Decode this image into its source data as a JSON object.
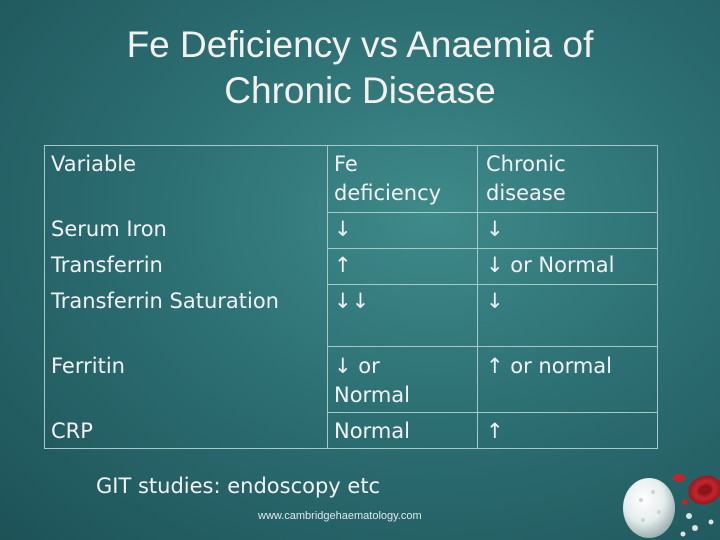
{
  "slide": {
    "title_line1": "Fe Deficiency vs Anaemia of",
    "title_line2": "Chronic Disease"
  },
  "table": {
    "headers": {
      "variable": "Variable",
      "fe_line1": "Fe",
      "fe_line2": "deficiency",
      "chronic_line1": "Chronic",
      "chronic_line2": "disease"
    },
    "rows": [
      {
        "variable": "Serum Iron",
        "fe": "↓",
        "chronic": "↓"
      },
      {
        "variable": "Transferrin",
        "fe": "↑",
        "chronic": "↓ or Normal"
      },
      {
        "variable": "Transferrin Saturation",
        "fe": "↓↓",
        "chronic": "↓"
      },
      {
        "variable": "Ferritin",
        "fe_line1": "↓ or",
        "fe_line2": "Normal",
        "chronic": "↑ or normal"
      },
      {
        "variable": "CRP",
        "fe": "Normal",
        "chronic": "↑"
      }
    ]
  },
  "footer": {
    "note": "GIT studies: endoscopy etc",
    "url": "www.cambridgehaematology.com"
  },
  "colors": {
    "background": "#2c6f73",
    "text": "#f2f2f2",
    "rule": "#a8c9c9",
    "red_cell": "#c0262c"
  },
  "icons": {
    "decoration": "blood-cells-icon"
  }
}
